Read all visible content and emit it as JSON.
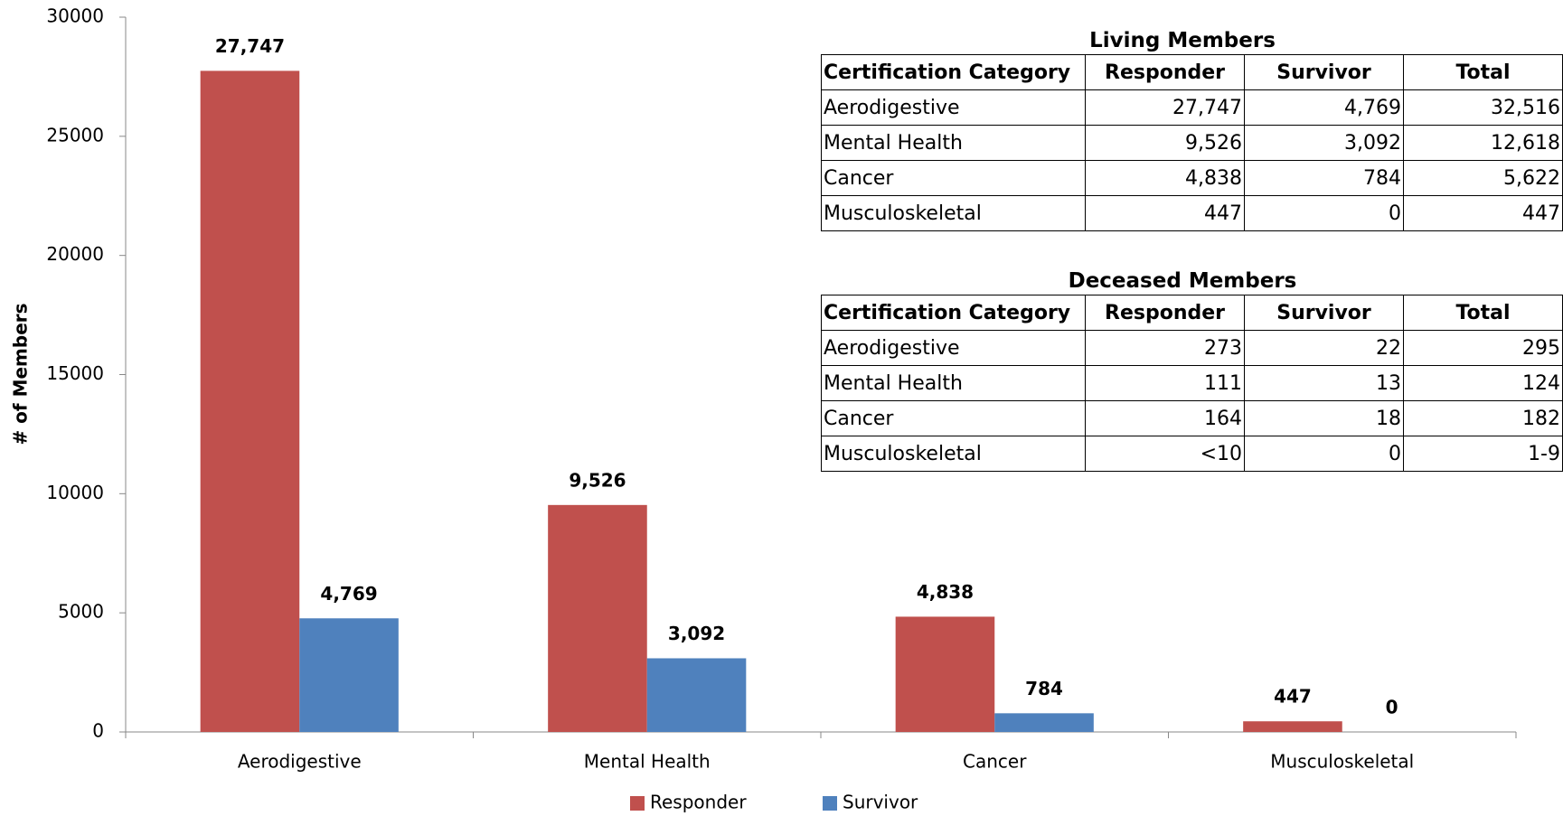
{
  "chart_data": {
    "type": "bar",
    "categories": [
      "Aerodigestive",
      "Mental Health",
      "Cancer",
      "Musculoskeletal"
    ],
    "series": [
      {
        "name": "Responder",
        "color": "#c0504d",
        "values": [
          27747,
          9526,
          4838,
          447
        ],
        "value_labels": [
          "27,747",
          "9,526",
          "4,838",
          "447"
        ]
      },
      {
        "name": "Survivor",
        "color": "#4f81bd",
        "values": [
          4769,
          3092,
          784,
          0
        ],
        "value_labels": [
          "4,769",
          "3,092",
          "784",
          "0"
        ]
      }
    ],
    "y_label": "# of Members",
    "ylim": [
      0,
      30000
    ],
    "yticks": [
      0,
      5000,
      10000,
      15000,
      20000,
      25000,
      30000
    ],
    "legend": "bottom",
    "tables": [
      {
        "title": "Living Members",
        "columns": [
          "Certification Category",
          "Responder",
          "Survivor",
          "Total"
        ],
        "rows": [
          [
            "Aerodigestive",
            "27,747",
            "4,769",
            "32,516"
          ],
          [
            "Mental Health",
            "9,526",
            "3,092",
            "12,618"
          ],
          [
            "Cancer",
            "4,838",
            "784",
            "5,622"
          ],
          [
            "Musculoskeletal",
            "447",
            "0",
            "447"
          ]
        ]
      },
      {
        "title": "Deceased Members",
        "columns": [
          "Certification Category",
          "Responder",
          "Survivor",
          "Total"
        ],
        "rows": [
          [
            "Aerodigestive",
            "273",
            "22",
            "295"
          ],
          [
            "Mental Health",
            "111",
            "13",
            "124"
          ],
          [
            "Cancer",
            "164",
            "18",
            "182"
          ],
          [
            "Musculoskeletal",
            "<10",
            "0",
            "1-9"
          ]
        ]
      }
    ]
  }
}
